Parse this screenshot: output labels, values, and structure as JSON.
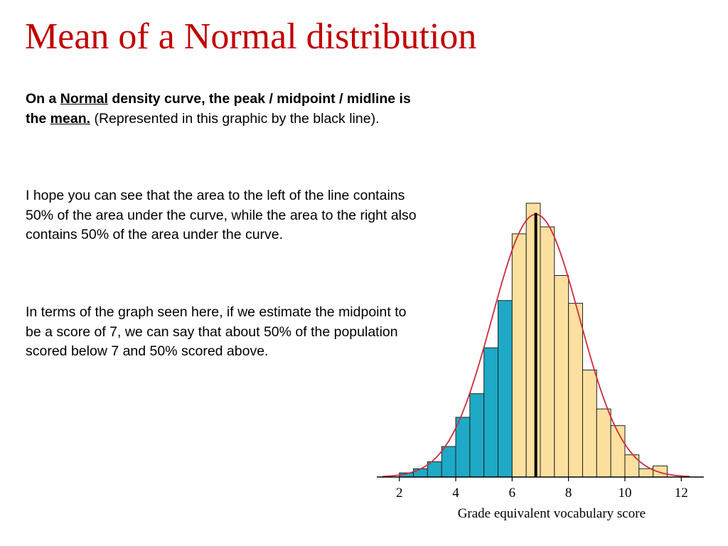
{
  "slide": {
    "title": "Mean of a Normal distribution",
    "paragraph1": {
      "on_a": "On a ",
      "normal": "Normal",
      "density_text": " density curve, the peak / midpoint / midline is the ",
      "mean": "mean.",
      "rest": " (Represented in this graphic by the black line)."
    },
    "paragraph2": "I hope you can see that the area to the left of the line contains 50% of the area under the curve, while the area to the right also contains 50% of the area under the curve.",
    "paragraph3": "In terms of the graph seen here, if we estimate the midpoint to be a score of 7, we can say that about 50% of the population scored below 7 and 50% scored above."
  },
  "chart_data": {
    "type": "bar",
    "xlabel": "Grade equivalent vocabulary score",
    "ylabel": "",
    "title": "",
    "x_ticks": [
      2,
      4,
      6,
      8,
      10,
      12
    ],
    "xlim": [
      1.2,
      12.8
    ],
    "ylim": [
      0,
      1
    ],
    "bin_width": 0.5,
    "bins": [
      {
        "left": 2.0,
        "height": 0.015
      },
      {
        "left": 2.5,
        "height": 0.03
      },
      {
        "left": 3.0,
        "height": 0.055
      },
      {
        "left": 3.5,
        "height": 0.11
      },
      {
        "left": 4.0,
        "height": 0.215
      },
      {
        "left": 4.5,
        "height": 0.3
      },
      {
        "left": 5.0,
        "height": 0.465
      },
      {
        "left": 5.5,
        "height": 0.635
      },
      {
        "left": 6.0,
        "height": 0.875
      },
      {
        "left": 6.5,
        "height": 0.985
      },
      {
        "left": 7.0,
        "height": 0.9
      },
      {
        "left": 7.5,
        "height": 0.725
      },
      {
        "left": 8.0,
        "height": 0.625
      },
      {
        "left": 8.5,
        "height": 0.385
      },
      {
        "left": 9.0,
        "height": 0.245
      },
      {
        "left": 9.5,
        "height": 0.185
      },
      {
        "left": 10.0,
        "height": 0.08
      },
      {
        "left": 10.5,
        "height": 0.03
      },
      {
        "left": 11.0,
        "height": 0.04
      }
    ],
    "shaded_below": 6,
    "mean": 6.84,
    "curve": {
      "mean": 6.84,
      "sd": 1.55,
      "peak": 0.945
    },
    "colors": {
      "bar_fill": "#fbe0a0",
      "shaded_fill": "#1ea9c6",
      "bar_stroke": "#222222",
      "curve": "#cc2c3b",
      "mean_line": "#000000"
    }
  }
}
